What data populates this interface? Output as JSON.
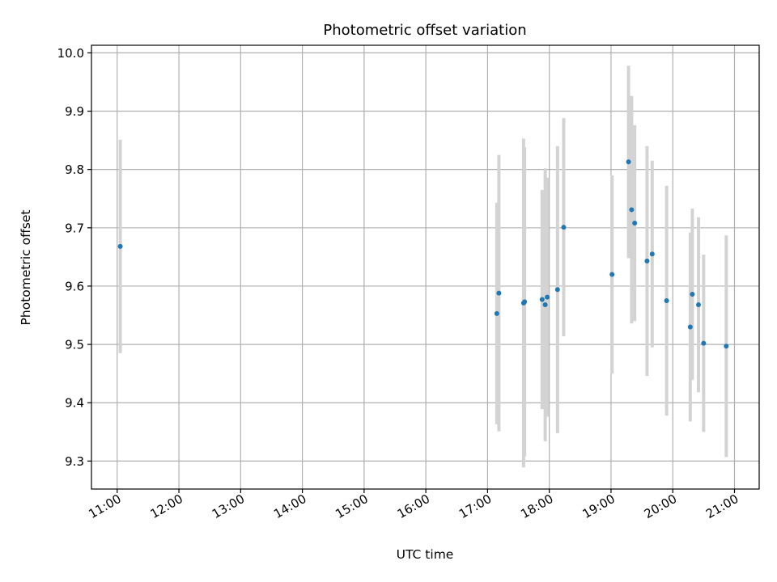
{
  "chart_data": {
    "type": "scatter",
    "title": "Photometric offset variation",
    "xlabel": "UTC time",
    "ylabel": "Photometric offset",
    "grid": true,
    "legend": "none",
    "xlim": [
      "10:35",
      "21:24"
    ],
    "ylim": [
      9.252,
      10.013
    ],
    "x_ticks": [
      "11:00",
      "12:00",
      "13:00",
      "14:00",
      "15:00",
      "16:00",
      "17:00",
      "18:00",
      "19:00",
      "20:00",
      "21:00"
    ],
    "y_ticks": [
      "9.3",
      "9.4",
      "9.5",
      "9.6",
      "9.7",
      "9.8",
      "9.9",
      "10.0"
    ],
    "marker_color": "#1f77b4",
    "errorbar_color": "#d3d3d3",
    "series": [
      {
        "points": [
          {
            "t": "11:03",
            "y": 9.668,
            "err": 0.183
          },
          {
            "t": "17:09",
            "y": 9.553,
            "err": 0.19
          },
          {
            "t": "17:11",
            "y": 9.588,
            "err": 0.237
          },
          {
            "t": "17:35",
            "y": 9.571,
            "err": 0.282
          },
          {
            "t": "17:36",
            "y": 9.573,
            "err": 0.265
          },
          {
            "t": "17:53",
            "y": 9.577,
            "err": 0.188
          },
          {
            "t": "17:56",
            "y": 9.568,
            "err": 0.234
          },
          {
            "t": "17:58",
            "y": 9.581,
            "err": 0.205
          },
          {
            "t": "18:08",
            "y": 9.594,
            "err": 0.246
          },
          {
            "t": "18:14",
            "y": 9.701,
            "err": 0.187
          },
          {
            "t": "19:01",
            "y": 9.62,
            "err": 0.17
          },
          {
            "t": "19:17",
            "y": 9.813,
            "err": 0.165
          },
          {
            "t": "19:20",
            "y": 9.731,
            "err": 0.195
          },
          {
            "t": "19:23",
            "y": 9.708,
            "err": 0.168
          },
          {
            "t": "19:35",
            "y": 9.643,
            "err": 0.197
          },
          {
            "t": "19:40",
            "y": 9.655,
            "err": 0.16
          },
          {
            "t": "19:54",
            "y": 9.575,
            "err": 0.197
          },
          {
            "t": "20:17",
            "y": 9.53,
            "err": 0.162
          },
          {
            "t": "20:19",
            "y": 9.586,
            "err": 0.147
          },
          {
            "t": "20:25",
            "y": 9.568,
            "err": 0.15
          },
          {
            "t": "20:30",
            "y": 9.502,
            "err": 0.152
          },
          {
            "t": "20:52",
            "y": 9.497,
            "err": 0.19
          }
        ]
      }
    ]
  }
}
